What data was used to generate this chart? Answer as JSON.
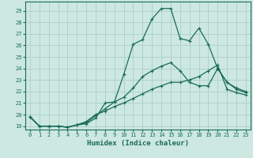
{
  "xlabel": "Humidex (Indice chaleur)",
  "bg_color": "#cce8e0",
  "line_color": "#1a6b5a",
  "grid_color": "#aacfc8",
  "ylim": [
    18.7,
    29.8
  ],
  "xlim": [
    -0.5,
    23.5
  ],
  "yticks": [
    19,
    20,
    21,
    22,
    23,
    24,
    25,
    26,
    27,
    28,
    29
  ],
  "xticks": [
    0,
    1,
    2,
    3,
    4,
    5,
    6,
    7,
    8,
    9,
    10,
    11,
    12,
    13,
    14,
    15,
    16,
    17,
    18,
    19,
    20,
    21,
    22,
    23
  ],
  "line1": [
    19.8,
    19.0,
    19.0,
    19.0,
    18.9,
    19.1,
    19.2,
    19.7,
    21.0,
    21.1,
    23.5,
    26.1,
    26.5,
    28.3,
    29.2,
    29.2,
    26.6,
    26.4,
    27.5,
    26.1,
    24.0,
    22.8,
    22.2,
    21.9
  ],
  "line2": [
    19.8,
    19.0,
    19.0,
    19.0,
    18.9,
    19.1,
    19.3,
    19.9,
    20.5,
    21.1,
    21.5,
    22.3,
    23.3,
    23.8,
    24.2,
    24.5,
    23.8,
    22.8,
    22.5,
    22.5,
    24.0,
    22.8,
    22.3,
    22.0
  ],
  "line3": [
    19.8,
    19.0,
    19.0,
    19.0,
    18.9,
    19.1,
    19.4,
    20.0,
    20.3,
    20.7,
    21.0,
    21.4,
    21.8,
    22.2,
    22.5,
    22.8,
    22.8,
    23.0,
    23.3,
    23.8,
    24.3,
    22.2,
    21.9,
    21.7
  ]
}
